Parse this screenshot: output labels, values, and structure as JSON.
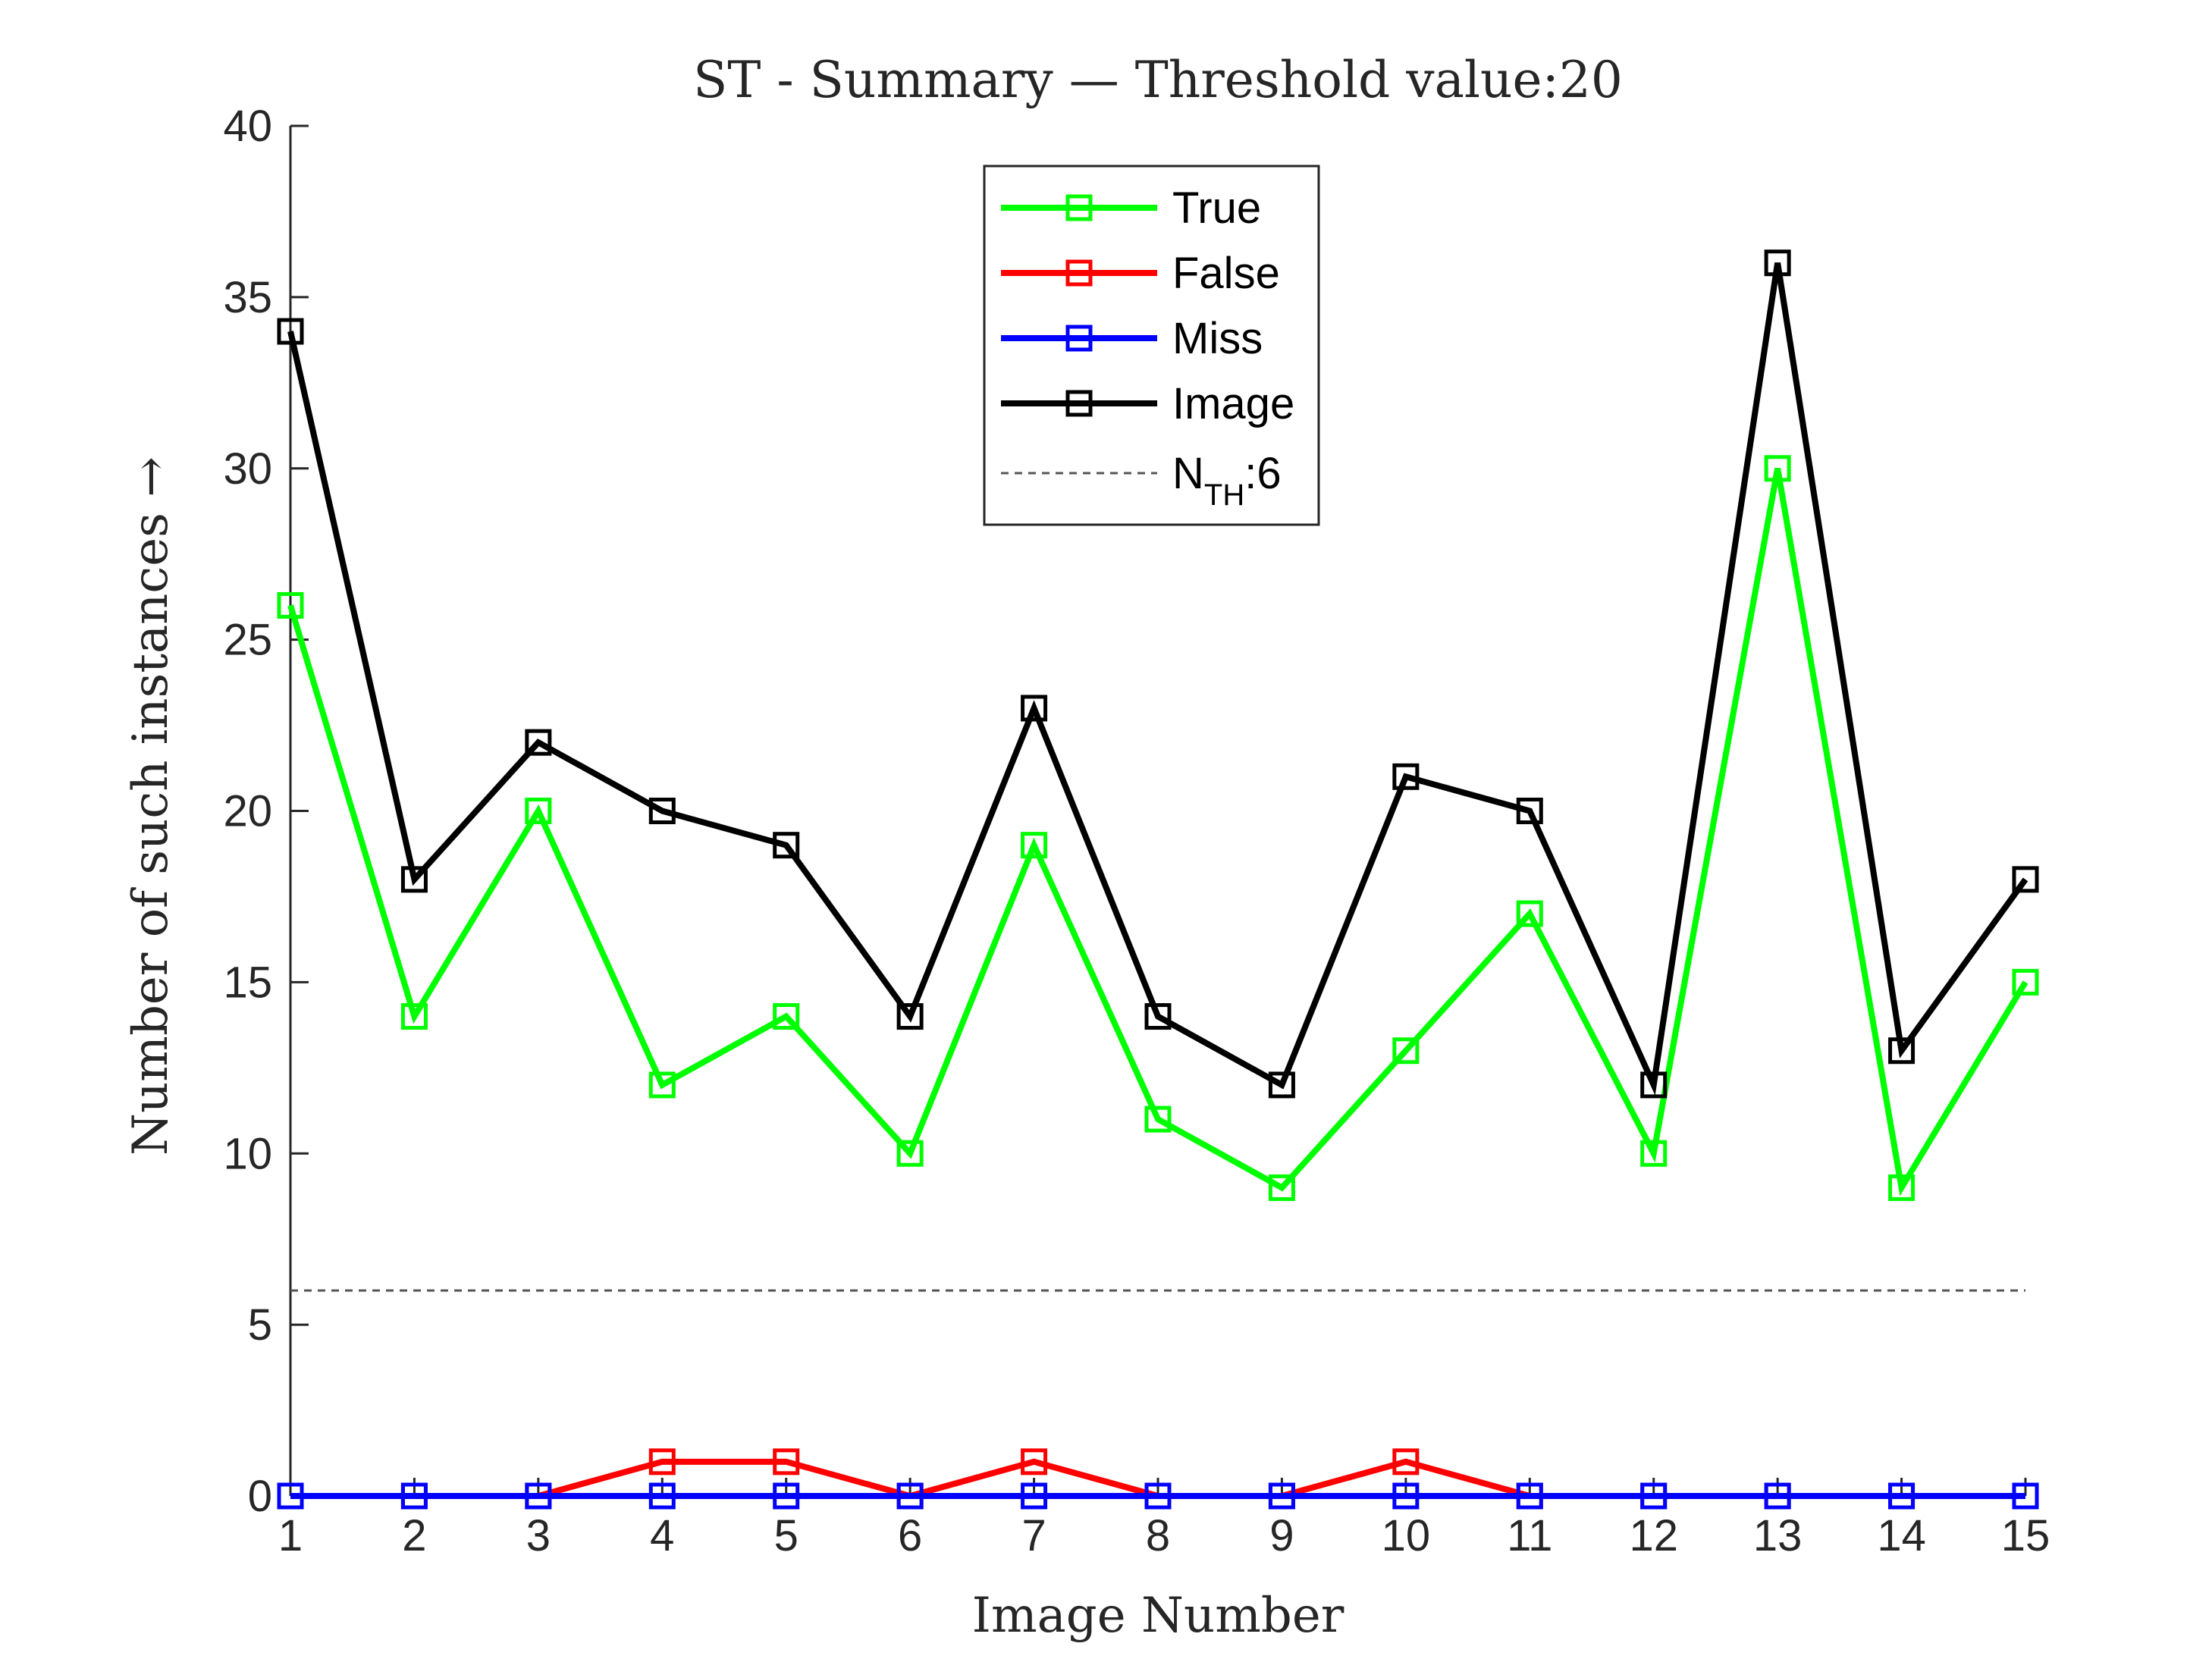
{
  "chart_data": {
    "type": "line",
    "title": "ST - Summary — Threshold value:20",
    "xlabel": "Image Number",
    "ylabel": "Number of such instances →",
    "x": [
      1,
      2,
      3,
      4,
      5,
      6,
      7,
      8,
      9,
      10,
      11,
      12,
      13,
      14,
      15
    ],
    "xlim": [
      1,
      15
    ],
    "ylim": [
      0,
      40
    ],
    "yticks": [
      0,
      5,
      10,
      15,
      20,
      25,
      30,
      35,
      40
    ],
    "grid": false,
    "legend_position": "top-center",
    "series": [
      {
        "name": "True",
        "color": "#00ff00",
        "marker": "square",
        "values": [
          26,
          14,
          20,
          12,
          14,
          10,
          19,
          11,
          9,
          13,
          17,
          10,
          30,
          9,
          15
        ]
      },
      {
        "name": "False",
        "color": "#ff0000",
        "marker": "square",
        "values": [
          0,
          0,
          0,
          1,
          1,
          0,
          1,
          0,
          0,
          1,
          0,
          0,
          0,
          0,
          0
        ]
      },
      {
        "name": "Miss",
        "color": "#0000ff",
        "marker": "square",
        "values": [
          0,
          0,
          0,
          0,
          0,
          0,
          0,
          0,
          0,
          0,
          0,
          0,
          0,
          0,
          0
        ]
      },
      {
        "name": "Image",
        "color": "#000000",
        "marker": "square",
        "values": [
          34,
          18,
          22,
          20,
          19,
          14,
          23,
          14,
          12,
          21,
          20,
          12,
          36,
          13,
          18
        ]
      }
    ],
    "reference_line": {
      "label_main": "N",
      "label_sub": "TH",
      "label_suffix": ":6",
      "value": 6,
      "color": "#555555",
      "style": "dashed"
    }
  }
}
